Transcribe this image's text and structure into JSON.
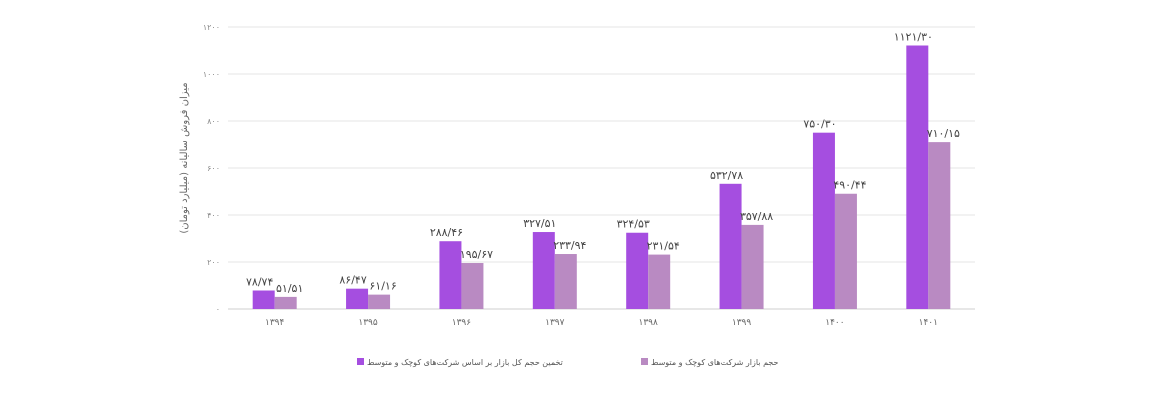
{
  "chart_data": {
    "type": "bar",
    "title": "",
    "xlabel": "",
    "ylabel": "میزان فروش سالیانه (میلیارد تومان)",
    "ylim": [
      0,
      1200
    ],
    "yticks": [
      "۰",
      "۲۰۰",
      "۴۰۰",
      "۶۰۰",
      "۸۰۰",
      "۱۰۰۰",
      "۱۲۰۰"
    ],
    "ytick_values": [
      0,
      200,
      400,
      600,
      800,
      1000,
      1200
    ],
    "categories": [
      "۱۳۹۴",
      "۱۳۹۵",
      "۱۳۹۶",
      "۱۳۹۷",
      "۱۳۹۸",
      "۱۳۹۹",
      "۱۴۰۰",
      "۱۴۰۱"
    ],
    "grid": true,
    "legend_position": "bottom",
    "series": [
      {
        "name": "تخمین حجم کل بازار بر اساس شرکت‌های کوچک و متوسط",
        "color": "#a54ee0",
        "values": [
          78.74,
          86.47,
          288.46,
          327.51,
          324.53,
          532.78,
          750.3,
          1121.3
        ],
        "labels": [
          "۷۸/۷۴",
          "۸۶/۴۷",
          "۲۸۸/۴۶",
          "۳۲۷/۵۱",
          "۳۲۴/۵۳",
          "۵۳۲/۷۸",
          "۷۵۰/۳۰",
          "۱۱۲۱/۳۰"
        ]
      },
      {
        "name": "حجم بازار شرکت‌های کوچک و متوسط",
        "color": "#b98ac2",
        "values": [
          51.51,
          61.16,
          195.67,
          233.94,
          231.54,
          357.88,
          490.44,
          710.15
        ],
        "labels": [
          "۵۱/۵۱",
          "۶۱/۱۶",
          "۱۹۵/۶۷",
          "۲۳۳/۹۴",
          "۲۳۱/۵۴",
          "۳۵۷/۸۸",
          "۴۹۰/۴۴",
          "۷۱۰/۱۵"
        ]
      }
    ]
  }
}
